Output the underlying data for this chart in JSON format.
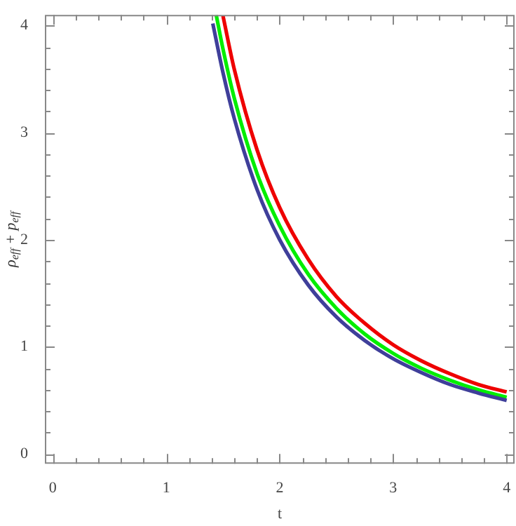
{
  "chart_data": {
    "type": "line",
    "xlabel": "t",
    "ylabel": "ρ$_{eff}$ + p$_{eff}$",
    "xlim": [
      -0.07,
      4.07
    ],
    "ylim": [
      -0.09,
      4.1
    ],
    "xticks": [
      0,
      {
        "value": 0.2,
        "label": null
      },
      {
        "value": 0.4,
        "label": null
      },
      {
        "value": 0.6,
        "label": null
      },
      {
        "value": 0.8,
        "label": null
      },
      1,
      {
        "value": 1.2,
        "label": null
      },
      {
        "value": 1.4,
        "label": null
      },
      {
        "value": 1.6,
        "label": null
      },
      {
        "value": 1.8,
        "label": null
      },
      2,
      {
        "value": 2.2,
        "label": null
      },
      {
        "value": 2.4,
        "label": null
      },
      {
        "value": 2.6,
        "label": null
      },
      {
        "value": 2.8,
        "label": null
      },
      3,
      {
        "value": 3.2,
        "label": null
      },
      {
        "value": 3.4,
        "label": null
      },
      {
        "value": 3.6,
        "label": null
      },
      {
        "value": 3.8,
        "label": null
      },
      4
    ],
    "yticks": [
      0,
      {
        "value": 0.2,
        "label": null
      },
      {
        "value": 0.4,
        "label": null
      },
      {
        "value": 0.6,
        "label": null
      },
      {
        "value": 0.8,
        "label": null
      },
      1,
      {
        "value": 1.2,
        "label": null
      },
      {
        "value": 1.4,
        "label": null
      },
      {
        "value": 1.6,
        "label": null
      },
      {
        "value": 1.8,
        "label": null
      },
      2,
      {
        "value": 2.2,
        "label": null
      },
      {
        "value": 2.4,
        "label": null
      },
      {
        "value": 2.6,
        "label": null
      },
      {
        "value": 2.8,
        "label": null
      },
      3,
      {
        "value": 3.2,
        "label": null
      },
      {
        "value": 3.4,
        "label": null
      },
      {
        "value": 3.6,
        "label": null
      },
      {
        "value": 3.8,
        "label": null
      },
      4
    ],
    "grid": false,
    "legend": false,
    "marker": "none",
    "line_style": "solid",
    "series": [
      {
        "color": "#3f3f9a",
        "x": [
          1.41,
          1.5,
          1.6,
          1.8,
          2,
          2.25,
          2.5,
          2.75,
          3,
          3.25,
          3.5,
          3.75,
          4
        ],
        "values": [
          4.02,
          3.56,
          3.13,
          2.47,
          2.0,
          1.58,
          1.28,
          1.06,
          0.89,
          0.76,
          0.65,
          0.57,
          0.5
        ]
      },
      {
        "color": "#00ee00",
        "x": [
          1.44,
          1.5,
          1.6,
          1.8,
          2,
          2.25,
          2.5,
          2.75,
          3,
          3.25,
          3.5,
          3.75,
          4
        ],
        "values": [
          4.1,
          3.78,
          3.32,
          2.62,
          2.13,
          1.68,
          1.36,
          1.12,
          0.94,
          0.8,
          0.69,
          0.6,
          0.53
        ]
      },
      {
        "color": "#ee0000",
        "x": [
          1.5,
          1.6,
          1.8,
          2,
          2.25,
          2.5,
          2.75,
          3,
          3.25,
          3.5,
          3.75,
          4
        ],
        "values": [
          4.09,
          3.59,
          2.84,
          2.3,
          1.82,
          1.47,
          1.22,
          1.02,
          0.87,
          0.75,
          0.65,
          0.58
        ]
      }
    ]
  }
}
